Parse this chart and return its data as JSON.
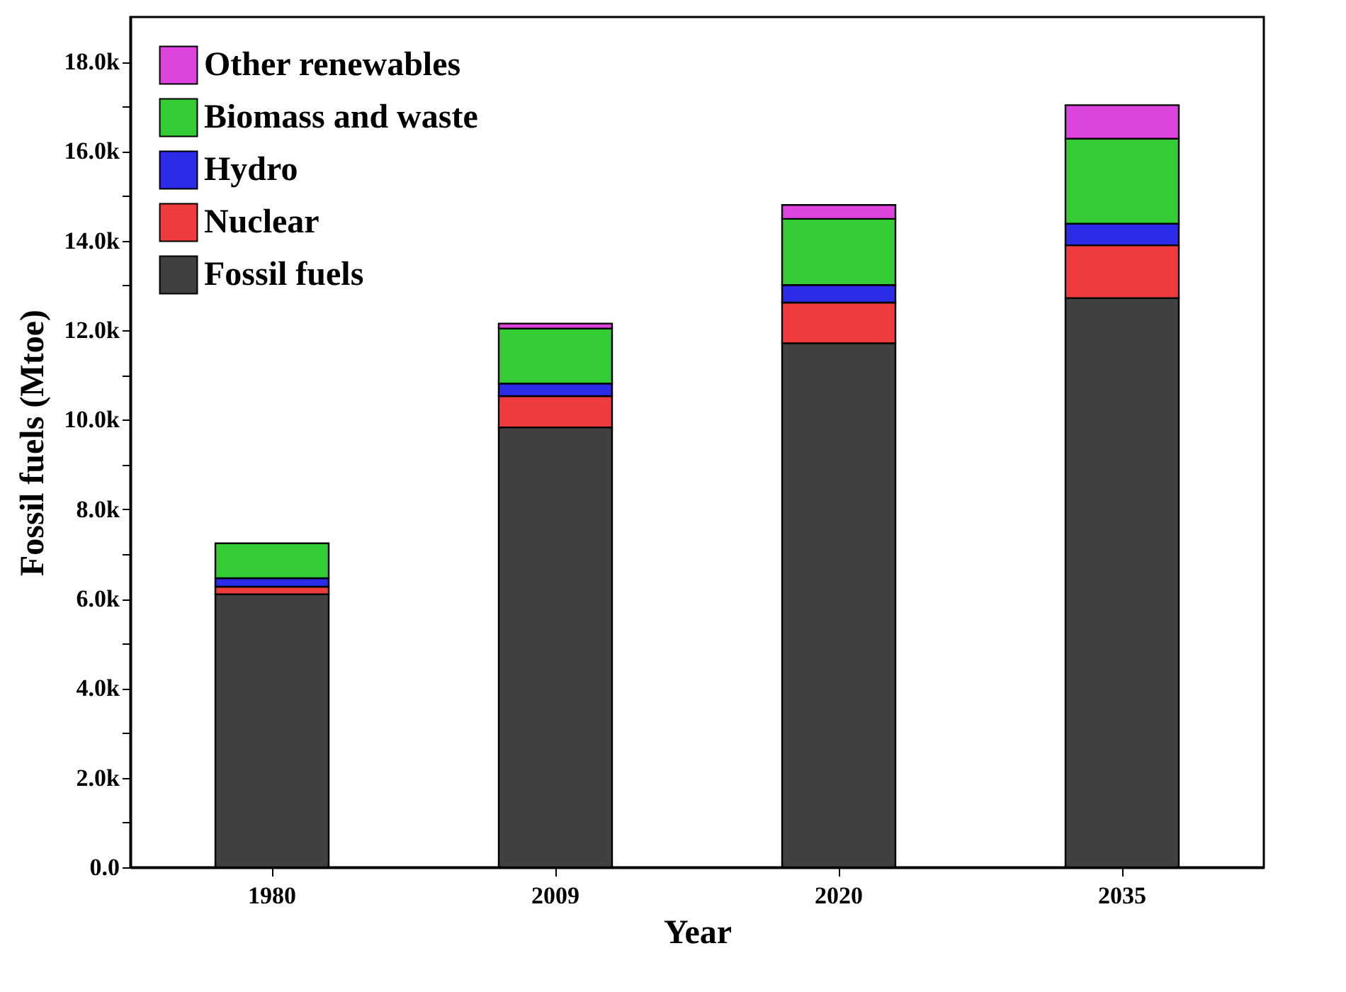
{
  "chart_data": {
    "type": "bar",
    "stacked": true,
    "xlabel": "Year",
    "ylabel": "Fossil fuels (Mtoe)",
    "categories": [
      "1980",
      "2009",
      "2020",
      "2035"
    ],
    "series": [
      {
        "name": "Fossil fuels",
        "color": "#404040",
        "values": [
          6100,
          9830,
          11710,
          12720
        ]
      },
      {
        "name": "Nuclear",
        "color": "#ee3b3b",
        "values": [
          170,
          700,
          910,
          1180
        ]
      },
      {
        "name": "Hydro",
        "color": "#2b2be8",
        "values": [
          190,
          280,
          390,
          480
        ]
      },
      {
        "name": "Biomass and waste",
        "color": "#33cc33",
        "values": [
          780,
          1230,
          1480,
          1900
        ]
      },
      {
        "name": "Other renewables",
        "color": "#dd44dd",
        "values": [
          null,
          110,
          310,
          750
        ]
      }
    ],
    "ylim": [
      0,
      19000
    ],
    "yticks": [
      {
        "value": 0,
        "label": "0.0"
      },
      {
        "value": 1000,
        "label": null
      },
      {
        "value": 2000,
        "label": "2.0k"
      },
      {
        "value": 3000,
        "label": null
      },
      {
        "value": 4000,
        "label": "4.0k"
      },
      {
        "value": 5000,
        "label": null
      },
      {
        "value": 6000,
        "label": "6.0k"
      },
      {
        "value": 7000,
        "label": null
      },
      {
        "value": 8000,
        "label": "8.0k"
      },
      {
        "value": 9000,
        "label": null
      },
      {
        "value": 10000,
        "label": "10.0k"
      },
      {
        "value": 11000,
        "label": null
      },
      {
        "value": 12000,
        "label": "12.0k"
      },
      {
        "value": 13000,
        "label": null
      },
      {
        "value": 14000,
        "label": "14.0k"
      },
      {
        "value": 15000,
        "label": null
      },
      {
        "value": 16000,
        "label": "16.0k"
      },
      {
        "value": 17000,
        "label": null
      },
      {
        "value": 18000,
        "label": "18.0k"
      }
    ],
    "grid": false,
    "legend": "top left"
  }
}
